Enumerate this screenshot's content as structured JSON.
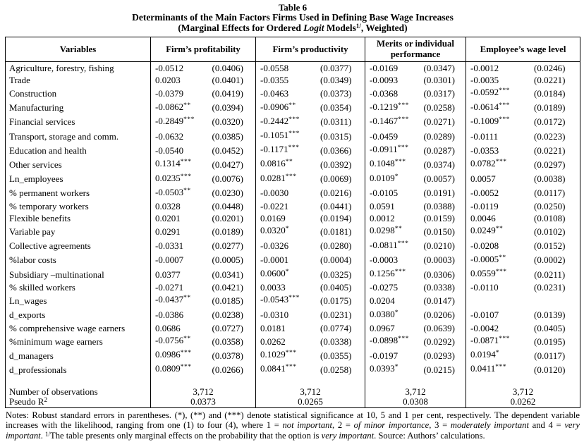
{
  "colors": {
    "background": "#ffffff",
    "text": "#000000",
    "border": "#000000"
  },
  "title": {
    "line1": "Table 6",
    "line2": "Determinants of the Main Factors Firms Used in Defining Base Wage Increases",
    "line3_prefix": "(Marginal Effects for Ordered ",
    "line3_italic": "Logit",
    "line3_mid": " Models",
    "line3_sup": "1/",
    "line3_suffix": ", Weighted)"
  },
  "table": {
    "headers": [
      "Variables",
      "Firm’s profitability",
      "Firm’s productivity",
      "Merits or individual performance",
      "Employee’s wage level"
    ],
    "rows": [
      {
        "label": "Agriculture, forestry, fishing",
        "cells": [
          [
            "-0.0512",
            "",
            "(0.0406)"
          ],
          [
            "-0.0558",
            "",
            "(0.0377)"
          ],
          [
            "-0.0169",
            "",
            "(0.0347)"
          ],
          [
            "-0.0012",
            "",
            "(0.0246)"
          ]
        ]
      },
      {
        "label": "Trade",
        "cells": [
          [
            "0.0203",
            "",
            "(0.0401)"
          ],
          [
            "-0.0355",
            "",
            "(0.0349)"
          ],
          [
            "-0.0093",
            "",
            "(0.0301)"
          ],
          [
            "-0.0035",
            "",
            "(0.0221)"
          ]
        ]
      },
      {
        "label": "Construction",
        "cells": [
          [
            "-0.0379",
            "",
            "(0.0419)"
          ],
          [
            "-0.0463",
            "",
            "(0.0373)"
          ],
          [
            "-0.0368",
            "",
            "(0.0317)"
          ],
          [
            "-0.0592",
            "***",
            "(0.0184)"
          ]
        ]
      },
      {
        "label": "Manufacturing",
        "cells": [
          [
            "-0.0862",
            "**",
            "(0.0394)"
          ],
          [
            "-0.0906",
            "**",
            "(0.0354)"
          ],
          [
            "-0.1219",
            "***",
            "(0.0258)"
          ],
          [
            "-0.0614",
            "***",
            "(0.0189)"
          ]
        ]
      },
      {
        "label": "Financial services",
        "cells": [
          [
            "-0.2849",
            "***",
            "(0.0320)"
          ],
          [
            "-0.2442",
            "***",
            "(0.0311)"
          ],
          [
            "-0.1467",
            "***",
            "(0.0271)"
          ],
          [
            "-0.1009",
            "***",
            "(0.0172)"
          ]
        ]
      },
      {
        "label": "Transport, storage and comm.",
        "cells": [
          [
            "-0.0632",
            "",
            "(0.0385)"
          ],
          [
            "-0.1051",
            "***",
            "(0.0315)"
          ],
          [
            "-0.0459",
            "",
            "(0.0289)"
          ],
          [
            "-0.0111",
            "",
            "(0.0223)"
          ]
        ]
      },
      {
        "label": "Education and health",
        "cells": [
          [
            "-0.0540",
            "",
            "(0.0452)"
          ],
          [
            "-0.1171",
            "***",
            "(0.0366)"
          ],
          [
            "-0.0911",
            "***",
            "(0.0287)"
          ],
          [
            "-0.0353",
            "",
            "(0.0221)"
          ]
        ]
      },
      {
        "label": "Other services",
        "cells": [
          [
            "0.1314",
            "***",
            "(0.0427)"
          ],
          [
            "0.0816",
            "**",
            "(0.0392)"
          ],
          [
            "0.1048",
            "***",
            "(0.0374)"
          ],
          [
            "0.0782",
            "***",
            "(0.0297)"
          ]
        ]
      },
      {
        "label": "Ln_employees",
        "cells": [
          [
            "0.0235",
            "***",
            "(0.0076)"
          ],
          [
            "0.0281",
            "***",
            "(0.0069)"
          ],
          [
            "0.0109",
            "*",
            "(0.0057)"
          ],
          [
            "0.0057",
            "",
            "(0.0038)"
          ]
        ]
      },
      {
        "label": "% permanent workers",
        "cells": [
          [
            "-0.0503",
            "**",
            "(0.0230)"
          ],
          [
            "-0.0030",
            "",
            "(0.0216)"
          ],
          [
            "-0.0105",
            "",
            "(0.0191)"
          ],
          [
            "-0.0052",
            "",
            "(0.0117)"
          ]
        ]
      },
      {
        "label": "% temporary workers",
        "cells": [
          [
            "0.0328",
            "",
            "(0.0448)"
          ],
          [
            "-0.0221",
            "",
            "(0.0441)"
          ],
          [
            "0.0591",
            "",
            "(0.0388)"
          ],
          [
            "-0.0119",
            "",
            "(0.0250)"
          ]
        ]
      },
      {
        "label": "Flexible benefits",
        "cells": [
          [
            "0.0201",
            "",
            "(0.0201)"
          ],
          [
            "0.0169",
            "",
            "(0.0194)"
          ],
          [
            "0.0012",
            "",
            "(0.0159)"
          ],
          [
            "0.0046",
            "",
            "(0.0108)"
          ]
        ]
      },
      {
        "label": "Variable pay",
        "cells": [
          [
            "0.0291",
            "",
            "(0.0189)"
          ],
          [
            "0.0320",
            "*",
            "(0.0181)"
          ],
          [
            "0.0298",
            "**",
            "(0.0150)"
          ],
          [
            "0.0249",
            "**",
            "(0.0102)"
          ]
        ]
      },
      {
        "label": "Collective agreements",
        "cells": [
          [
            "-0.0331",
            "",
            "(0.0277)"
          ],
          [
            "-0.0326",
            "",
            "(0.0280)"
          ],
          [
            "-0.0811",
            "***",
            "(0.0210)"
          ],
          [
            "-0.0208",
            "",
            "(0.0152)"
          ]
        ]
      },
      {
        "label": "%labor costs",
        "cells": [
          [
            "-0.0007",
            "",
            "(0.0005)"
          ],
          [
            "-0.0001",
            "",
            "(0.0004)"
          ],
          [
            "-0.0003",
            "",
            "(0.0003)"
          ],
          [
            "-0.0005",
            "**",
            "(0.0002)"
          ]
        ]
      },
      {
        "label": "Subsidiary –multinational",
        "cells": [
          [
            "0.0377",
            "",
            "(0.0341)"
          ],
          [
            "0.0600",
            "*",
            "(0.0325)"
          ],
          [
            "0.1256",
            "***",
            "(0.0306)"
          ],
          [
            "0.0559",
            "***",
            "(0.0211)"
          ]
        ]
      },
      {
        "label": "% skilled workers",
        "cells": [
          [
            "-0.0271",
            "",
            "(0.0421)"
          ],
          [
            "0.0033",
            "",
            "(0.0405)"
          ],
          [
            "-0.0275",
            "",
            "(0.0338)"
          ],
          [
            "-0.0110",
            "",
            "(0.0231)"
          ]
        ]
      },
      {
        "label": "Ln_wages",
        "cells": [
          [
            "-0.0437",
            "**",
            "(0.0185)"
          ],
          [
            "-0.0543",
            "***",
            "(0.0175)"
          ],
          [
            "0.0204",
            "",
            "(0.0147)"
          ],
          [
            "",
            "",
            ""
          ]
        ]
      },
      {
        "label": "d_exports",
        "cells": [
          [
            "-0.0386",
            "",
            "(0.0238)"
          ],
          [
            "-0.0310",
            "",
            "(0.0231)"
          ],
          [
            "0.0380",
            "*",
            "(0.0206)"
          ],
          [
            "-0.0107",
            "",
            "(0.0139)"
          ]
        ]
      },
      {
        "label": "% comprehensive wage earners",
        "cells": [
          [
            "0.0686",
            "",
            "(0.0727)"
          ],
          [
            "0.0181",
            "",
            "(0.0774)"
          ],
          [
            "0.0967",
            "",
            "(0.0639)"
          ],
          [
            "-0.0042",
            "",
            "(0.0405)"
          ]
        ]
      },
      {
        "label": "%minimum wage earners",
        "cells": [
          [
            "-0.0756",
            "**",
            "(0.0358)"
          ],
          [
            "0.0262",
            "",
            "(0.0338)"
          ],
          [
            "-0.0898",
            "***",
            "(0.0292)"
          ],
          [
            "-0.0871",
            "***",
            "(0.0195)"
          ]
        ]
      },
      {
        "label": "d_managers",
        "cells": [
          [
            "0.0986",
            "***",
            "(0.0378)"
          ],
          [
            "0.1029",
            "***",
            "(0.0355)"
          ],
          [
            "-0.0197",
            "",
            "(0.0293)"
          ],
          [
            "0.0194",
            "*",
            "(0.0117)"
          ]
        ]
      },
      {
        "label": "d_professionals",
        "cells": [
          [
            "0.0809",
            "***",
            "(0.0266)"
          ],
          [
            "0.0841",
            "***",
            "(0.0258)"
          ],
          [
            "0.0393",
            "*",
            "(0.0215)"
          ],
          [
            "0.0411",
            "***",
            "(0.0120)"
          ]
        ]
      }
    ],
    "summary": {
      "observations": {
        "label": "Number of observations",
        "values": [
          "3,712",
          "3,712",
          "3,712",
          "3,712"
        ]
      },
      "pseudo_r2": {
        "label_base": "Pseudo R",
        "label_sup": "2",
        "values": [
          "0.0373",
          "0.0265",
          "0.0308",
          "0.0262"
        ]
      }
    }
  },
  "notes": {
    "segments": [
      {
        "text": "Notes: Robust standard errors in parentheses. (*), (**) and (***) denote statistical significance at 10, 5 and 1 per cent, respectively. The dependent variable increases with the likelihood, ranging from one (1) to four (4), where 1 = ",
        "style": "normal"
      },
      {
        "text": "not important",
        "style": "italic"
      },
      {
        "text": ", 2 = ",
        "style": "normal"
      },
      {
        "text": "of minor importance",
        "style": "italic"
      },
      {
        "text": ", 3 = ",
        "style": "normal"
      },
      {
        "text": "moderately important",
        "style": "italic"
      },
      {
        "text": " and 4 = ",
        "style": "normal"
      },
      {
        "text": "very important",
        "style": "italic"
      },
      {
        "text": ". ",
        "style": "normal"
      },
      {
        "text": "1/",
        "style": "sup"
      },
      {
        "text": "The table presents only marginal effects on the probability that the option is ",
        "style": "normal"
      },
      {
        "text": "very important",
        "style": "italic"
      },
      {
        "text": ". Source: Authors’ calculations.",
        "style": "normal"
      }
    ]
  }
}
